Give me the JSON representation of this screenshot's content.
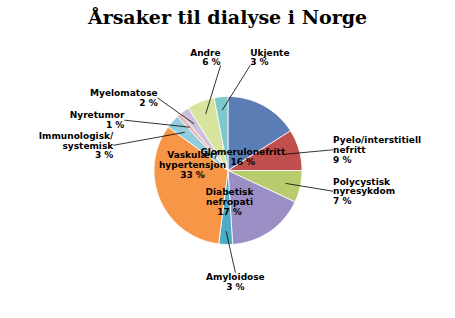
{
  "chart_data": {
    "type": "pie",
    "title": "Årsaker til dialyse i Norge",
    "categories": [
      "Glomerulonefritt\n16 %",
      "Pyelo/interstitiell\nnefritt\n9 %",
      "Polycystisk\nnyresykdom\n7 %",
      "Diabetisk\nnefropati\n17 %",
      "Amyloidose\n3 %",
      "Vaskulær/\nhypertensjon\n33 %",
      "Immunologisk/\nsystemisk\n3 %",
      "Nyretumor\n1 %",
      "Myelomatose\n2 %",
      "Andre\n6 %",
      "Ukjente\n3 %"
    ],
    "values": [
      16,
      9,
      7,
      17,
      3,
      33,
      3,
      1,
      2,
      6,
      3
    ],
    "colors": [
      "#5B7DB5",
      "#C0504D",
      "#B8CC6E",
      "#9B8EC4",
      "#4BACC6",
      "#F79646",
      "#92CDDC",
      "#E6B9B8",
      "#CCC0DA",
      "#D6E4A0",
      "#7EC8CC"
    ]
  }
}
